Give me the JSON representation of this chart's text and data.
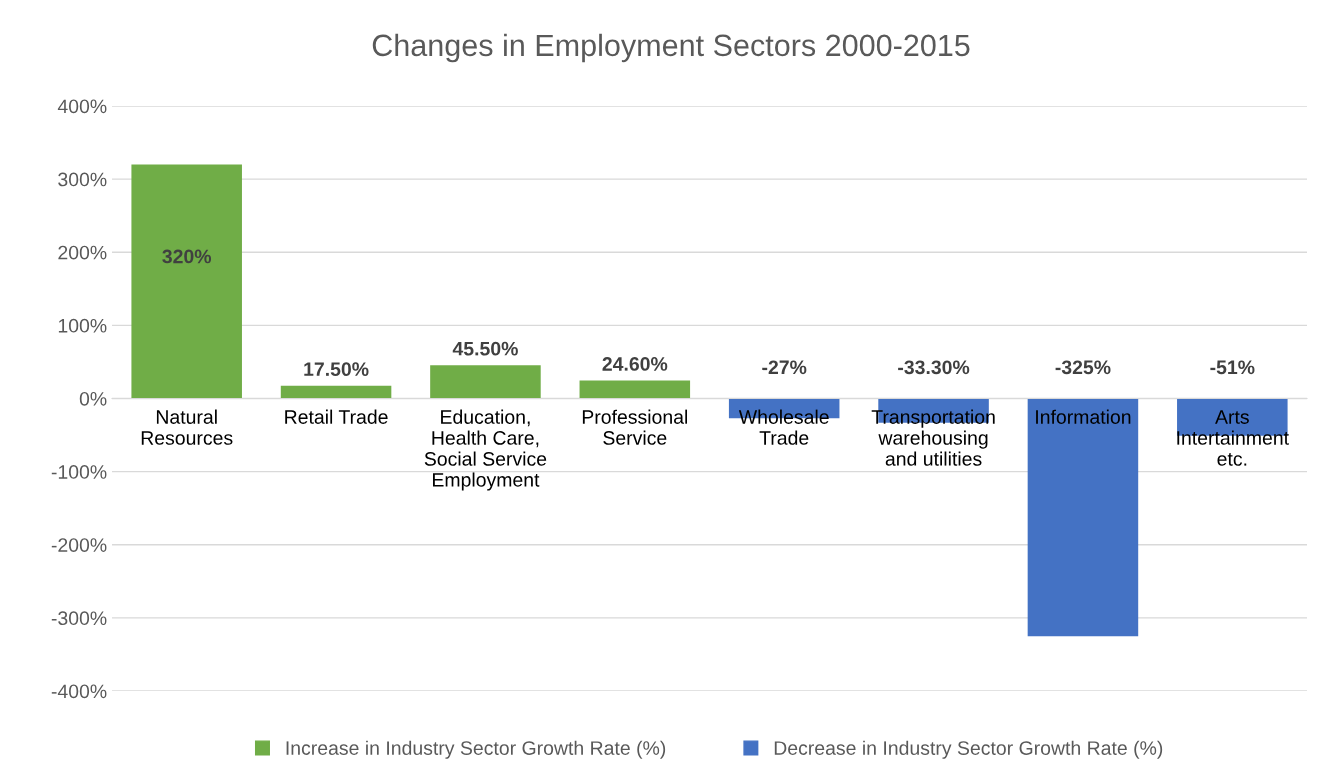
{
  "chart_data": {
    "type": "bar",
    "title": "Changes in Employment Sectors 2000-2015",
    "categories": [
      "Natural\nResources",
      "Retail Trade",
      "Education,\nHealth Care,\nSocial Service\nEmployment",
      "Professional\nService",
      "Wholesale\nTrade",
      "Transportation\nwarehousing\nand utilities",
      "Information",
      "Arts\nIntertainment\netc."
    ],
    "series": [
      {
        "name": "Increase in Industry Sector Growth Rate (%)",
        "color": "#70ad47",
        "values": [
          320,
          17.5,
          45.5,
          24.6,
          null,
          null,
          null,
          null
        ],
        "value_labels": [
          "320%",
          "17.50%",
          "45.50%",
          "24.60%",
          null,
          null,
          null,
          null
        ]
      },
      {
        "name": "Decrease in Industry Sector Growth Rate (%)",
        "color": "#4472c4",
        "values": [
          null,
          null,
          null,
          null,
          -27,
          -33.3,
          -325,
          -51
        ],
        "value_labels": [
          null,
          null,
          null,
          null,
          "-27%",
          "-33.30%",
          "-325%",
          "-51%"
        ]
      }
    ],
    "stacked": true,
    "ylim": [
      -400,
      400
    ],
    "yticks": [
      {
        "value": -400,
        "label": "-400%"
      },
      {
        "value": -300,
        "label": "-300%"
      },
      {
        "value": -200,
        "label": "-200%"
      },
      {
        "value": -100,
        "label": "-100%"
      },
      {
        "value": 0,
        "label": "0%"
      },
      {
        "value": 100,
        "label": "100%"
      },
      {
        "value": 200,
        "label": "200%"
      },
      {
        "value": 300,
        "label": "300%"
      },
      {
        "value": 400,
        "label": "400%"
      }
    ],
    "grid": "y",
    "legend": "bottom"
  }
}
